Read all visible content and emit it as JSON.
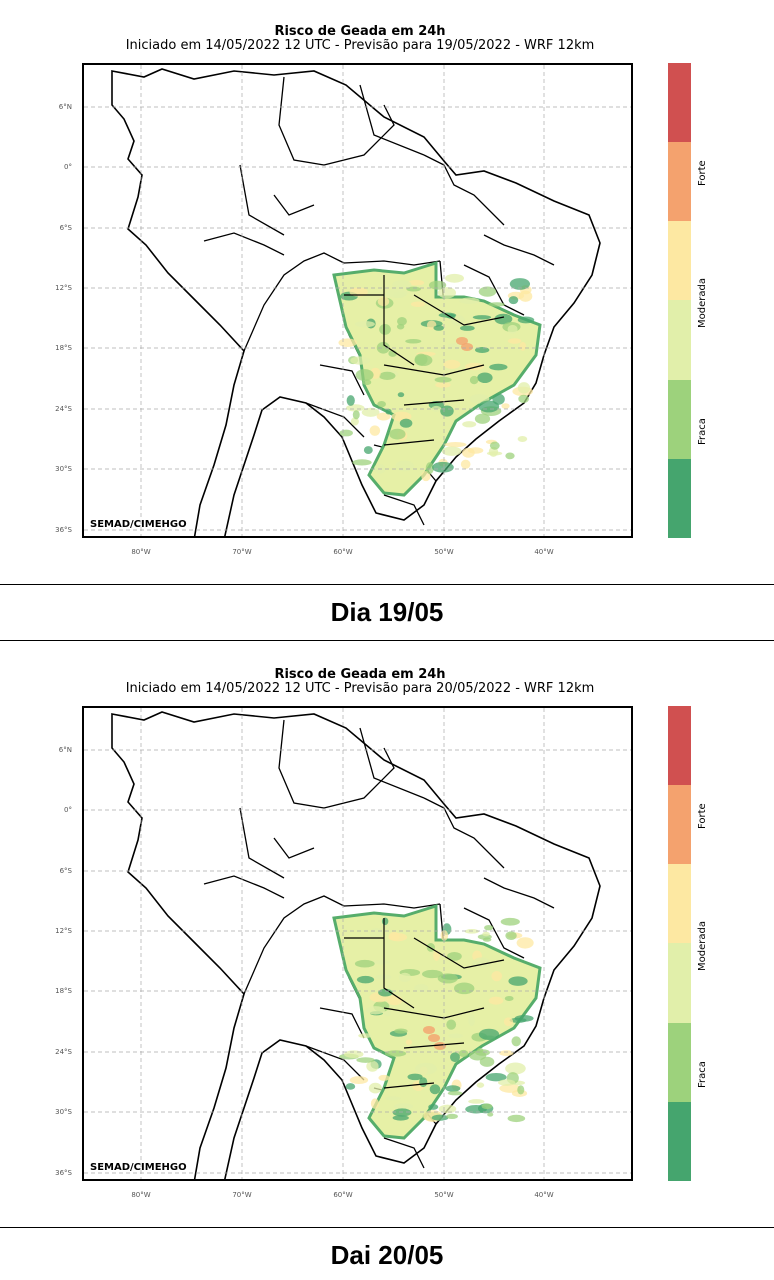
{
  "panels": [
    {
      "title": "Risco de Geada em 24h",
      "subtitle": "Iniciado em 14/05/2022 12 UTC - Previsão para 19/05/2022 - WRF 12km",
      "credit": "SEMAD/CIMEHGO",
      "caption": "Dia 19/05"
    },
    {
      "title": "Risco de Geada em 24h",
      "subtitle": "Iniciado em 14/05/2022 12 UTC - Previsão para 20/05/2022 - WRF 12km",
      "credit": "SEMAD/CIMEHGO",
      "caption": "Dai 20/05"
    }
  ],
  "lat_ticks": [
    "6°N",
    "0°",
    "6°S",
    "12°S",
    "18°S",
    "24°S",
    "30°S",
    "36°S"
  ],
  "lon_ticks": [
    "80°W",
    "70°W",
    "60°W",
    "50°W",
    "40°W"
  ],
  "colorbar": {
    "colors": [
      "#d05050",
      "#f4a26e",
      "#fde8a2",
      "#e1efaa",
      "#9dd27c",
      "#45a56e"
    ],
    "labels": [
      "Forte",
      "Moderada",
      "Fraca"
    ]
  }
}
